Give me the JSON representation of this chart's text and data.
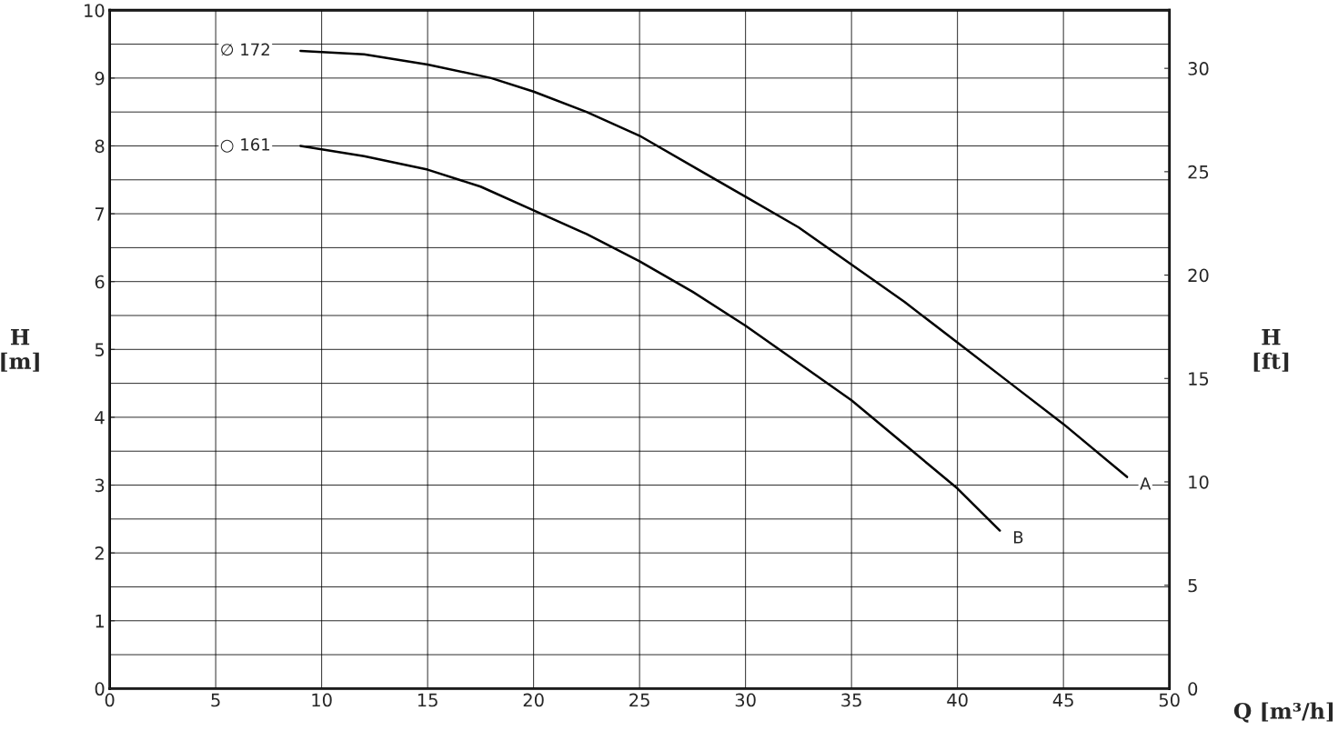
{
  "chart_data": {
    "type": "line",
    "xlabel": "Q [m³/h]",
    "ylabel": "H\n[m]",
    "y2label": "H\n[ft]",
    "xlim": [
      0,
      50
    ],
    "xticks": [
      0,
      5,
      10,
      15,
      20,
      25,
      30,
      35,
      40,
      45,
      50
    ],
    "ylim": [
      0,
      10
    ],
    "yticks": [
      0,
      1,
      2,
      3,
      4,
      5,
      6,
      7,
      8,
      9,
      10
    ],
    "y2lim": [
      0,
      32.81
    ],
    "y2ticks": [
      0,
      5,
      10,
      15,
      20,
      25,
      30
    ],
    "grid": true,
    "marker": "none",
    "line_style": "solid",
    "series": [
      {
        "name": "A",
        "color": "#000000",
        "x": [
          9,
          12,
          15,
          18,
          20,
          22.5,
          25,
          27.5,
          30,
          32.5,
          35,
          37.5,
          40,
          42.5,
          45,
          48
        ],
        "values": [
          9.4,
          9.35,
          9.2,
          9.0,
          8.8,
          8.5,
          8.15,
          7.7,
          7.25,
          6.8,
          6.25,
          5.7,
          5.1,
          4.5,
          3.9,
          3.12
        ]
      },
      {
        "name": "B",
        "color": "#000000",
        "x": [
          9,
          12,
          15,
          17.5,
          20,
          22.5,
          25,
          27.5,
          30,
          32.5,
          35,
          37.5,
          40,
          42
        ],
        "values": [
          8.0,
          7.85,
          7.65,
          7.4,
          7.05,
          6.7,
          6.3,
          5.85,
          5.35,
          4.8,
          4.25,
          3.6,
          2.95,
          2.33
        ]
      }
    ],
    "annotations": [
      "∅ 172",
      "○ 161"
    ]
  }
}
